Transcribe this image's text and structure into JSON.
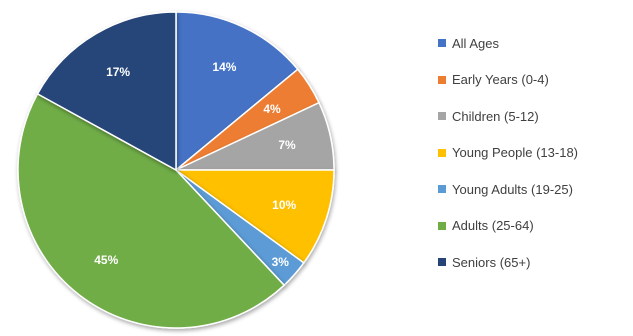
{
  "chart_data": {
    "type": "pie",
    "title": "",
    "categories": [
      "All Ages",
      "Early Years (0-4)",
      "Children (5-12)",
      "Young People (13-18)",
      "Young Adults (19-25)",
      "Adults (25-64)",
      "Seniors (65+)"
    ],
    "values": [
      14,
      4,
      7,
      10,
      3,
      45,
      17
    ],
    "data_labels": [
      "14%",
      "4%",
      "7%",
      "10%",
      "3%",
      "45%",
      "17%"
    ],
    "colors": [
      "#4472C4",
      "#ED7D31",
      "#A5A5A5",
      "#FFC000",
      "#5B9BD5",
      "#70AD47",
      "#264478"
    ],
    "label_colors": [
      "#ffffff",
      "#ffffff",
      "#ffffff",
      "#ffffff",
      "#ffffff",
      "#ffffff",
      "#ffffff"
    ],
    "start_angle_deg": 0,
    "direction": "clockwise",
    "legend_position": "right"
  }
}
